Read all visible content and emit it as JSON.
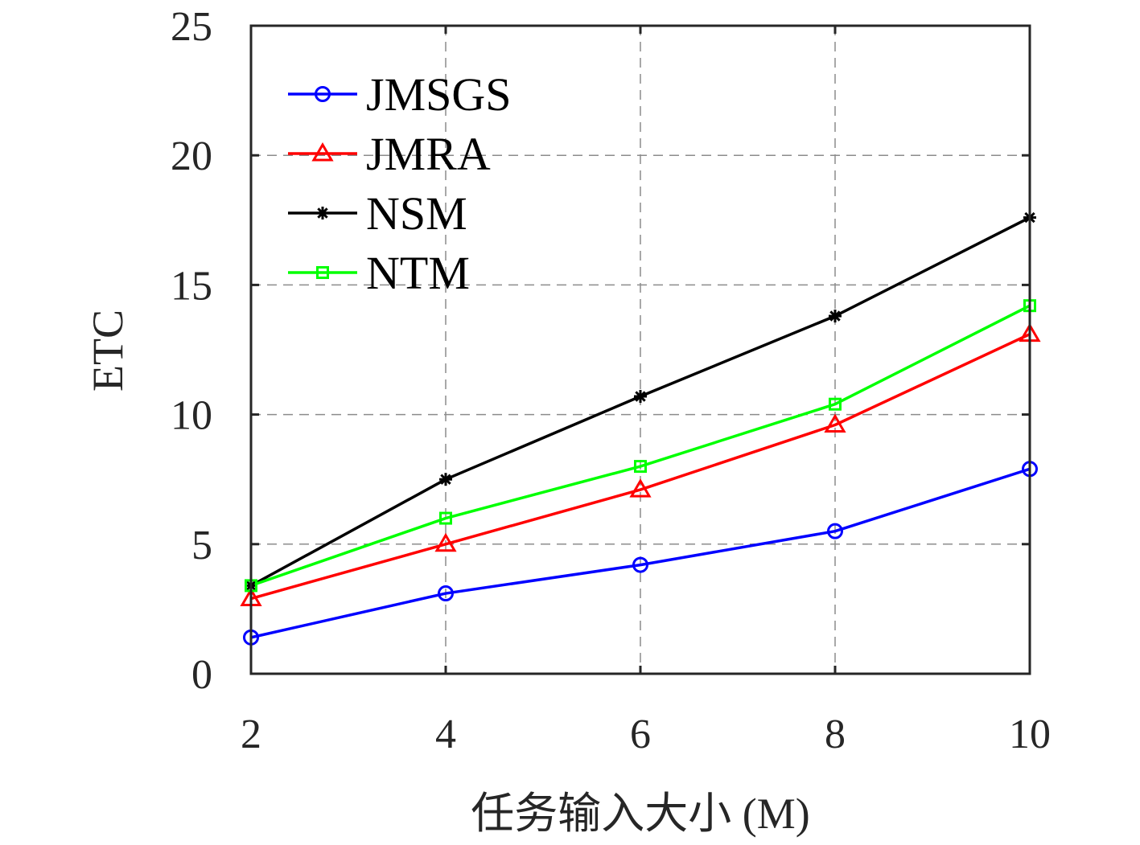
{
  "chart_data": {
    "type": "line",
    "title": "",
    "xlabel": "任务输入大小 (M)",
    "ylabel": "ETC",
    "x": [
      2,
      4,
      6,
      8,
      10
    ],
    "xlim": [
      2,
      10
    ],
    "ylim": [
      0,
      25
    ],
    "xticks": [
      "2",
      "4",
      "6",
      "8",
      "10"
    ],
    "yticks": [
      "0",
      "5",
      "10",
      "15",
      "20",
      "25"
    ],
    "grid": true,
    "legend_position": "top-left",
    "series": [
      {
        "name": "JMSGS",
        "color": "#0000ff",
        "marker": "circle",
        "values": [
          1.4,
          3.1,
          4.2,
          5.5,
          7.9
        ]
      },
      {
        "name": "JMRA",
        "color": "#ff0000",
        "marker": "triangle",
        "values": [
          2.9,
          5.0,
          7.1,
          9.6,
          13.1
        ]
      },
      {
        "name": "NSM",
        "color": "#000000",
        "marker": "asterisk",
        "values": [
          3.4,
          7.5,
          10.7,
          13.8,
          17.6
        ]
      },
      {
        "name": "NTM",
        "color": "#00ff00",
        "marker": "square",
        "values": [
          3.4,
          6.0,
          8.0,
          10.4,
          14.2
        ]
      }
    ]
  }
}
